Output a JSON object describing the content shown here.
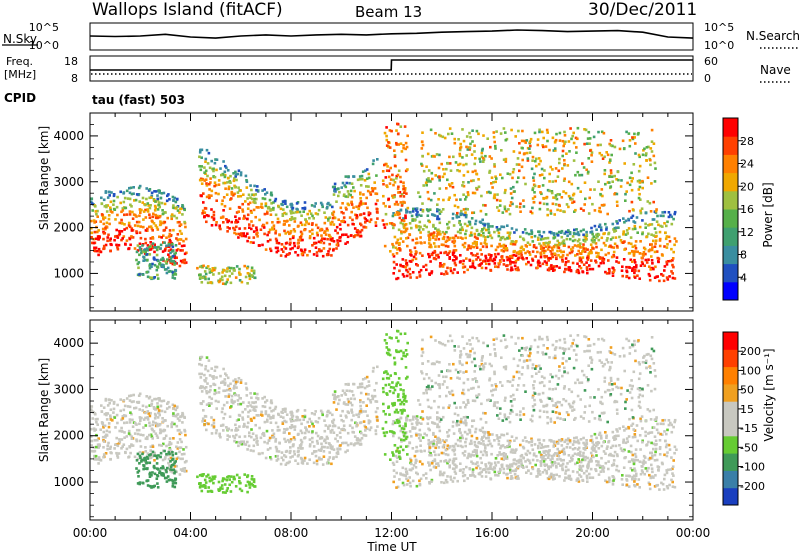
{
  "header": {
    "station": "Wallops Island (fitACF)",
    "beam": "Beam 13",
    "date": "30/Dec/2011"
  },
  "top_panels": {
    "nsky_label": "N.Sky",
    "nsky_ticks": [
      "10^5",
      "10^0"
    ],
    "nsearch_label": "N.Search",
    "nsearch_ticks": [
      "10^5",
      "10^0"
    ],
    "freq_label_line1": "Freq.",
    "freq_label_line2": "[MHz]",
    "freq_ticks": [
      "18",
      "8"
    ],
    "nave_label": "Nave",
    "nave_ticks": [
      "60",
      "0"
    ],
    "cpid_label": "CPID",
    "cpid_value": "tau (fast) 503"
  },
  "colors": {
    "power": [
      "#0000ff",
      "#2050c0",
      "#3a8ea0",
      "#3fa070",
      "#56b04a",
      "#9fc040",
      "#f0a800",
      "#ff8000",
      "#ff4000",
      "#ff0000"
    ],
    "velocity": [
      "#1a3fbf",
      "#3a7fa8",
      "#3f9a58",
      "#66cc33",
      "#c8c8c0",
      "#c8c8c0",
      "#f0a020",
      "#ff8000",
      "#ff4000",
      "#ff0000"
    ]
  },
  "chart_data": [
    {
      "type": "line",
      "title": "N.Sky / N.Search",
      "x": [
        0,
        1,
        2,
        3,
        4,
        5,
        6,
        7,
        8,
        9,
        10,
        11,
        12,
        13,
        14,
        15,
        16,
        17,
        18,
        19,
        20,
        21,
        22,
        23,
        24
      ],
      "series": [
        {
          "name": "N.Sky",
          "values": [
            2.6,
            2.5,
            2.6,
            2.9,
            2.4,
            2.2,
            2.6,
            2.8,
            2.6,
            2.8,
            2.9,
            2.8,
            3.0,
            3.1,
            3.3,
            3.4,
            3.5,
            3.7,
            3.6,
            3.4,
            3.5,
            3.6,
            3.3,
            2.4,
            2.2
          ]
        }
      ],
      "xlim": [
        0,
        24
      ],
      "ylim": [
        0,
        5
      ]
    },
    {
      "type": "line",
      "title": "Freq. [MHz] / Nave",
      "x": [
        0,
        0.9,
        1,
        11.99,
        12,
        24
      ],
      "series": [
        {
          "name": "Freq.",
          "values": [
            12.4,
            12.4,
            12.4,
            12.4,
            16.4,
            16.4
          ]
        }
      ],
      "xlim": [
        0,
        24
      ],
      "ylim": [
        8,
        18
      ]
    },
    {
      "type": "heatmap",
      "title": "Power",
      "xlabel": "",
      "ylabel": "Slant Range [km]",
      "xlim": [
        0,
        24
      ],
      "ylim": [
        180,
        4500
      ],
      "x_ticks": [
        "00:00",
        "04:00",
        "08:00",
        "12:00",
        "16:00",
        "20:00",
        "00:00"
      ],
      "y_ticks": [
        1000,
        2000,
        3000,
        4000
      ],
      "colorbar_label": "Power [dB]",
      "colorbar_ticks": [
        "28",
        "24",
        "20",
        "16",
        "12",
        "8",
        "4"
      ]
    },
    {
      "type": "heatmap",
      "title": "Velocity",
      "xlabel": "Time UT",
      "ylabel": "Slant Range [km]",
      "xlim": [
        0,
        24
      ],
      "ylim": [
        180,
        4500
      ],
      "x_ticks": [
        "00:00",
        "04:00",
        "08:00",
        "12:00",
        "16:00",
        "20:00",
        "00:00"
      ],
      "y_ticks": [
        1000,
        2000,
        3000,
        4000
      ],
      "colorbar_label": "Velocity [m s⁻¹]",
      "colorbar_ticks": [
        "200",
        "100",
        "50",
        "15",
        "-15",
        "-50",
        "-100",
        "-200"
      ]
    }
  ]
}
